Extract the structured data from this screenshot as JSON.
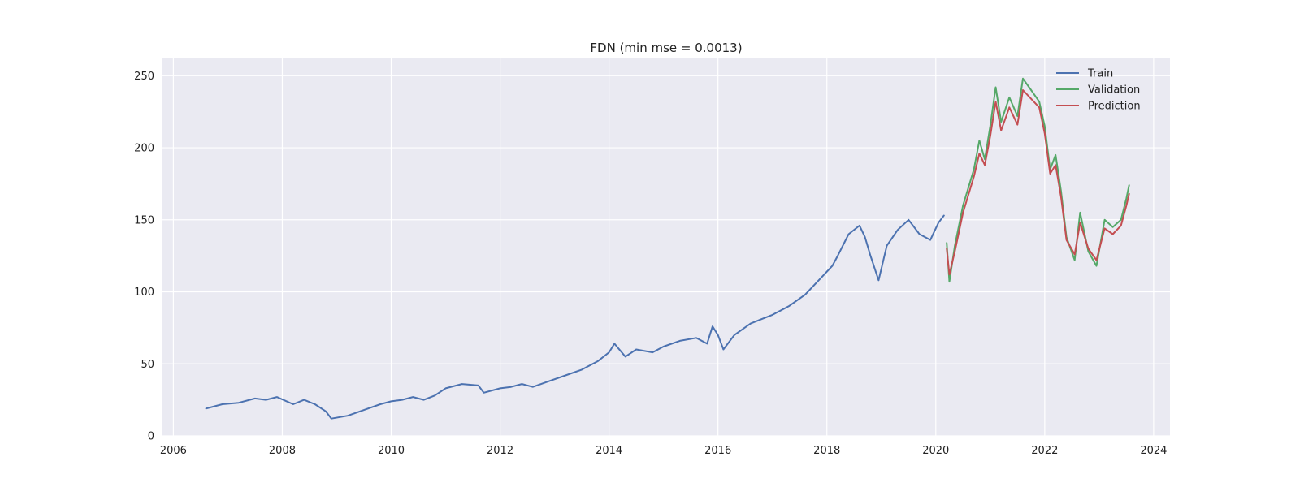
{
  "chart_data": {
    "type": "line",
    "title": "FDN (min mse = 0.0013)",
    "xlabel": "",
    "ylabel": "",
    "xlim": [
      2005.8,
      2024.3
    ],
    "ylim": [
      0,
      262
    ],
    "x_ticks": [
      2006,
      2008,
      2010,
      2012,
      2014,
      2016,
      2018,
      2020,
      2022,
      2024
    ],
    "y_ticks": [
      0,
      50,
      100,
      150,
      200,
      250
    ],
    "x_tick_labels": [
      "2006",
      "2008",
      "2010",
      "2012",
      "2014",
      "2016",
      "2018",
      "2020",
      "2022",
      "2024"
    ],
    "y_tick_labels": [
      "0",
      "50",
      "100",
      "150",
      "200",
      "250"
    ],
    "grid": true,
    "legend_position": "top-right",
    "series": [
      {
        "name": "Train",
        "color": "#4c72b0",
        "points": [
          [
            2006.6,
            19
          ],
          [
            2006.9,
            22
          ],
          [
            2007.2,
            23
          ],
          [
            2007.5,
            26
          ],
          [
            2007.7,
            25
          ],
          [
            2007.9,
            27
          ],
          [
            2008.2,
            22
          ],
          [
            2008.4,
            25
          ],
          [
            2008.6,
            22
          ],
          [
            2008.8,
            17
          ],
          [
            2008.9,
            12
          ],
          [
            2009.2,
            14
          ],
          [
            2009.5,
            18
          ],
          [
            2009.8,
            22
          ],
          [
            2010.0,
            24
          ],
          [
            2010.2,
            25
          ],
          [
            2010.4,
            27
          ],
          [
            2010.6,
            25
          ],
          [
            2010.8,
            28
          ],
          [
            2011.0,
            33
          ],
          [
            2011.3,
            36
          ],
          [
            2011.6,
            35
          ],
          [
            2011.7,
            30
          ],
          [
            2012.0,
            33
          ],
          [
            2012.2,
            34
          ],
          [
            2012.4,
            36
          ],
          [
            2012.6,
            34
          ],
          [
            2012.9,
            38
          ],
          [
            2013.2,
            42
          ],
          [
            2013.5,
            46
          ],
          [
            2013.8,
            52
          ],
          [
            2014.0,
            58
          ],
          [
            2014.1,
            64
          ],
          [
            2014.3,
            55
          ],
          [
            2014.5,
            60
          ],
          [
            2014.8,
            58
          ],
          [
            2015.0,
            62
          ],
          [
            2015.3,
            66
          ],
          [
            2015.6,
            68
          ],
          [
            2015.8,
            64
          ],
          [
            2015.9,
            76
          ],
          [
            2016.0,
            70
          ],
          [
            2016.1,
            60
          ],
          [
            2016.3,
            70
          ],
          [
            2016.6,
            78
          ],
          [
            2016.8,
            81
          ],
          [
            2017.0,
            84
          ],
          [
            2017.3,
            90
          ],
          [
            2017.6,
            98
          ],
          [
            2017.9,
            110
          ],
          [
            2018.1,
            118
          ],
          [
            2018.2,
            125
          ],
          [
            2018.4,
            140
          ],
          [
            2018.6,
            146
          ],
          [
            2018.7,
            138
          ],
          [
            2018.8,
            125
          ],
          [
            2018.95,
            108
          ],
          [
            2019.1,
            132
          ],
          [
            2019.3,
            143
          ],
          [
            2019.5,
            150
          ],
          [
            2019.7,
            140
          ],
          [
            2019.9,
            136
          ],
          [
            2020.05,
            148
          ],
          [
            2020.15,
            153
          ]
        ]
      },
      {
        "name": "Validation",
        "color": "#55a868",
        "points": [
          [
            2020.2,
            134
          ],
          [
            2020.25,
            107
          ],
          [
            2020.35,
            132
          ],
          [
            2020.5,
            160
          ],
          [
            2020.7,
            185
          ],
          [
            2020.8,
            205
          ],
          [
            2020.9,
            192
          ],
          [
            2021.0,
            215
          ],
          [
            2021.1,
            242
          ],
          [
            2021.2,
            218
          ],
          [
            2021.35,
            235
          ],
          [
            2021.5,
            222
          ],
          [
            2021.6,
            248
          ],
          [
            2021.75,
            240
          ],
          [
            2021.9,
            232
          ],
          [
            2022.0,
            215
          ],
          [
            2022.1,
            185
          ],
          [
            2022.2,
            195
          ],
          [
            2022.3,
            170
          ],
          [
            2022.4,
            138
          ],
          [
            2022.55,
            122
          ],
          [
            2022.65,
            155
          ],
          [
            2022.8,
            128
          ],
          [
            2022.95,
            118
          ],
          [
            2023.1,
            150
          ],
          [
            2023.25,
            145
          ],
          [
            2023.4,
            150
          ],
          [
            2023.5,
            165
          ],
          [
            2023.55,
            174
          ]
        ]
      },
      {
        "name": "Prediction",
        "color": "#c44e52",
        "points": [
          [
            2020.2,
            130
          ],
          [
            2020.25,
            112
          ],
          [
            2020.35,
            128
          ],
          [
            2020.5,
            155
          ],
          [
            2020.7,
            180
          ],
          [
            2020.8,
            196
          ],
          [
            2020.9,
            188
          ],
          [
            2021.0,
            208
          ],
          [
            2021.1,
            232
          ],
          [
            2021.2,
            212
          ],
          [
            2021.35,
            228
          ],
          [
            2021.5,
            216
          ],
          [
            2021.6,
            240
          ],
          [
            2021.75,
            234
          ],
          [
            2021.9,
            228
          ],
          [
            2022.0,
            210
          ],
          [
            2022.1,
            182
          ],
          [
            2022.2,
            188
          ],
          [
            2022.3,
            166
          ],
          [
            2022.4,
            136
          ],
          [
            2022.55,
            126
          ],
          [
            2022.65,
            148
          ],
          [
            2022.8,
            130
          ],
          [
            2022.95,
            122
          ],
          [
            2023.1,
            144
          ],
          [
            2023.25,
            140
          ],
          [
            2023.4,
            146
          ],
          [
            2023.5,
            160
          ],
          [
            2023.55,
            168
          ]
        ]
      }
    ]
  }
}
